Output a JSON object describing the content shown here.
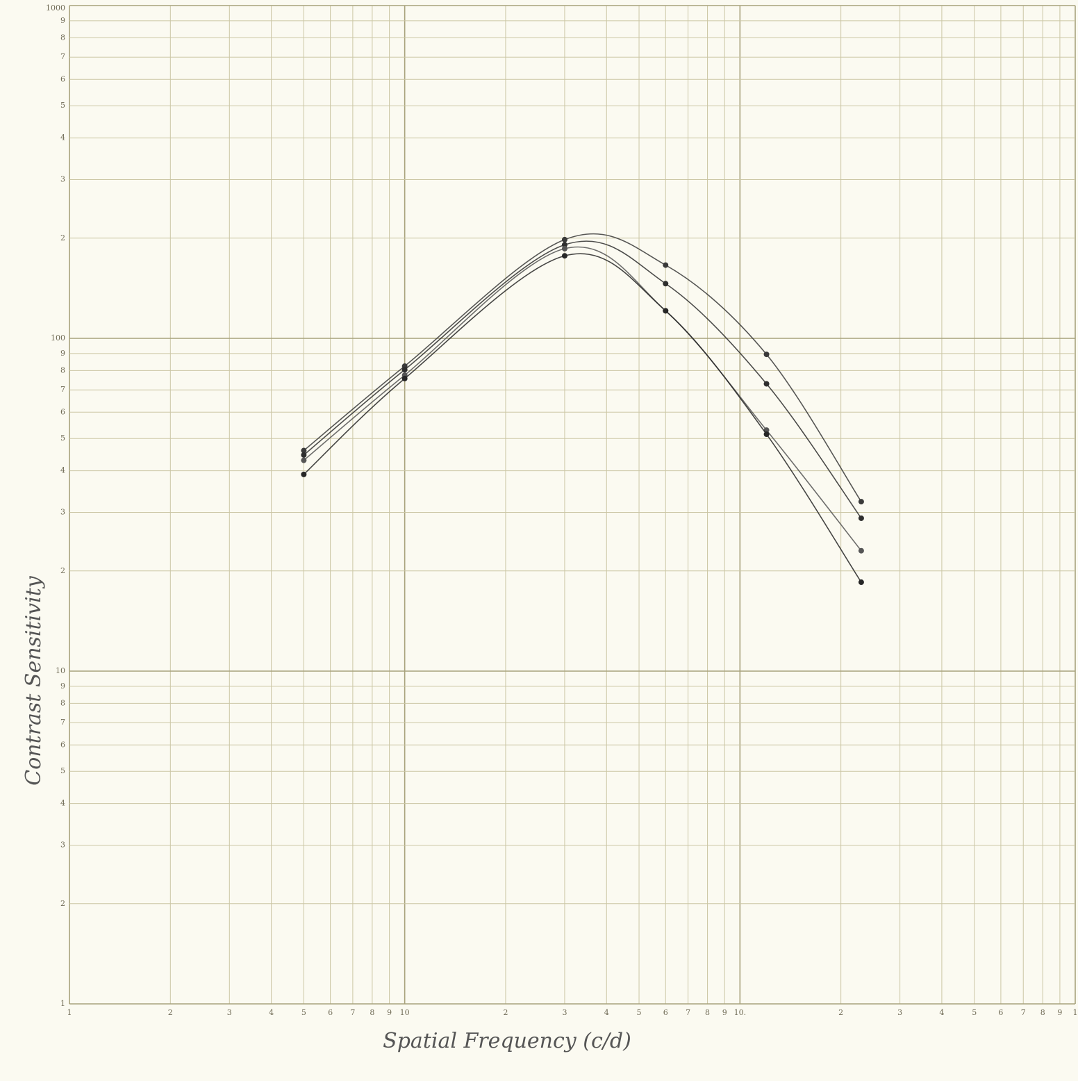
{
  "chart_data": {
    "type": "line",
    "x_label": "Spatial Frequency (c/d)",
    "y_label": "Contrast Sensitivity",
    "xscale": "log",
    "yscale": "log",
    "grid": true,
    "x": [
      0.5,
      1,
      3,
      6,
      12,
      23
    ],
    "series": [
      {
        "color": "#3a3a3a",
        "values": [
          46,
          82.5,
          198,
          166,
          89.5,
          32.3
        ]
      },
      {
        "color": "#2e2e2e",
        "values": [
          44.6,
          80.5,
          191,
          146,
          73,
          28.8
        ]
      },
      {
        "color": "#555555",
        "values": [
          43,
          77.5,
          186,
          121,
          53,
          23
        ]
      },
      {
        "color": "#262626",
        "values": [
          39,
          75.7,
          177,
          121,
          51.5,
          18.5
        ]
      }
    ],
    "xlim": [
      0.1,
      100
    ],
    "xticks": [
      {
        "value": 0.1,
        "label": "1"
      },
      {
        "value": 0.2,
        "label": "2"
      },
      {
        "value": 0.3,
        "label": "3"
      },
      {
        "value": 0.4,
        "label": "4"
      },
      {
        "value": 0.5,
        "label": "5"
      },
      {
        "value": 0.6,
        "label": "6"
      },
      {
        "value": 0.7,
        "label": "7"
      },
      {
        "value": 0.8,
        "label": "8"
      },
      {
        "value": 0.9,
        "label": "9"
      },
      {
        "value": 1,
        "label": "10"
      },
      {
        "value": 2,
        "label": "2"
      },
      {
        "value": 3,
        "label": "3"
      },
      {
        "value": 4,
        "label": "4"
      },
      {
        "value": 5,
        "label": "5"
      },
      {
        "value": 6,
        "label": "6"
      },
      {
        "value": 7,
        "label": "7"
      },
      {
        "value": 8,
        "label": "8"
      },
      {
        "value": 9,
        "label": "9"
      },
      {
        "value": 10,
        "label": "10."
      },
      {
        "value": 20,
        "label": "2"
      },
      {
        "value": 30,
        "label": "3"
      },
      {
        "value": 40,
        "label": "4"
      },
      {
        "value": 50,
        "label": "5"
      },
      {
        "value": 60,
        "label": "6"
      },
      {
        "value": 70,
        "label": "7"
      },
      {
        "value": 80,
        "label": "8"
      },
      {
        "value": 90,
        "label": "9"
      },
      {
        "value": 100,
        "label": "1"
      }
    ],
    "ylim": [
      1,
      1000
    ],
    "yticks": [
      1000,
      {
        "value": 900,
        "label": "9"
      },
      {
        "value": 800,
        "label": "8"
      },
      {
        "value": 700,
        "label": "7"
      },
      {
        "value": 600,
        "label": "6"
      },
      {
        "value": 500,
        "label": "5"
      },
      {
        "value": 400,
        "label": "4"
      },
      {
        "value": 300,
        "label": "3"
      },
      {
        "value": 200,
        "label": "2"
      },
      100,
      {
        "value": 90,
        "label": "9"
      },
      {
        "value": 80,
        "label": "8"
      },
      {
        "value": 70,
        "label": "7"
      },
      {
        "value": 60,
        "label": "6"
      },
      {
        "value": 50,
        "label": "5"
      },
      {
        "value": 40,
        "label": "4"
      },
      {
        "value": 30,
        "label": "3"
      },
      {
        "value": 20,
        "label": "2"
      },
      10,
      {
        "value": 9,
        "label": "9"
      },
      {
        "value": 8,
        "label": "8"
      },
      {
        "value": 7,
        "label": "7"
      },
      {
        "value": 6,
        "label": "6"
      },
      {
        "value": 5,
        "label": "5"
      },
      {
        "value": 4,
        "label": "4"
      },
      {
        "value": 3,
        "label": "3"
      },
      {
        "value": 2,
        "label": "2"
      },
      1
    ]
  }
}
